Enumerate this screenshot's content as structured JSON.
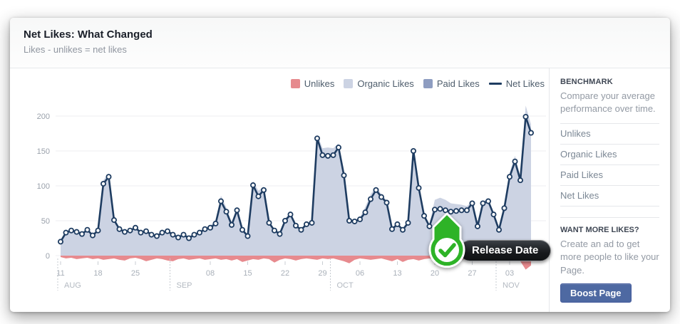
{
  "header": {
    "title": "Net Likes: What Changed",
    "subtitle": "Likes - unlikes = net likes"
  },
  "legend": [
    {
      "label": "Unlikes",
      "color": "#e68a8e",
      "type": "swatch"
    },
    {
      "label": "Organic Likes",
      "color": "#ccd3e3",
      "type": "swatch"
    },
    {
      "label": "Paid Likes",
      "color": "#8e9dc1",
      "type": "swatch"
    },
    {
      "label": "Net Likes",
      "color": "#1e3c61",
      "type": "line"
    }
  ],
  "annotation": {
    "tooltip": "Release Date",
    "icon": "check"
  },
  "chart_data": {
    "type": "area",
    "title": "Net Likes: What Changed",
    "x_start": "Aug 11",
    "x_end": "Nov 7",
    "ylim": [
      -30,
      220
    ],
    "yticks": [
      0,
      50,
      100,
      150,
      200
    ],
    "grid": true,
    "legend_position": "top-right",
    "colors": {
      "unlikes": "#e78a8e",
      "organic": "#ccd3e3",
      "paid": "#8e9dc1",
      "net": "#1e3c61"
    },
    "net_likes": [
      20,
      33,
      36,
      34,
      31,
      37,
      29,
      36,
      103,
      113,
      51,
      38,
      34,
      36,
      40,
      33,
      35,
      30,
      28,
      33,
      35,
      30,
      26,
      30,
      25,
      30,
      33,
      38,
      40,
      46,
      78,
      63,
      44,
      65,
      37,
      28,
      101,
      85,
      94,
      47,
      36,
      31,
      50,
      59,
      43,
      37,
      45,
      47,
      168,
      144,
      143,
      144,
      155,
      115,
      50,
      49,
      52,
      62,
      81,
      94,
      84,
      76,
      38,
      45,
      37,
      47,
      150,
      97,
      57,
      42,
      66,
      67,
      65,
      63,
      64,
      65,
      65,
      75,
      42,
      75,
      78,
      59,
      37,
      68,
      113,
      135,
      108,
      199,
      176
    ],
    "organic_likes": [
      22,
      35,
      38,
      36,
      33,
      39,
      31,
      38,
      108,
      118,
      54,
      40,
      36,
      38,
      42,
      35,
      37,
      32,
      30,
      35,
      37,
      32,
      28,
      32,
      27,
      32,
      35,
      40,
      43,
      50,
      86,
      69,
      47,
      68,
      39,
      30,
      107,
      93,
      99,
      50,
      38,
      33,
      53,
      62,
      45,
      39,
      47,
      50,
      174,
      154,
      155,
      154,
      161,
      123,
      53,
      51,
      55,
      70,
      88,
      99,
      88,
      79,
      40,
      47,
      39,
      50,
      156,
      105,
      60,
      45,
      80,
      83,
      80,
      75,
      74,
      73,
      71,
      78,
      44,
      78,
      81,
      62,
      39,
      71,
      119,
      143,
      114,
      215,
      188
    ],
    "unlikes": [
      -2,
      -4,
      -3,
      -5,
      -4,
      -3,
      -5,
      -4,
      -6,
      -5,
      -4,
      -6,
      -7,
      -4,
      -3,
      -5,
      -8,
      -6,
      -4,
      -5,
      -7,
      -8,
      -5,
      -4,
      -6,
      -5,
      -4,
      -6,
      -5,
      -4,
      -6,
      -5,
      -7,
      -5,
      -9,
      -7,
      -5,
      -6,
      -4,
      -5,
      -10,
      -6,
      -4,
      -5,
      -7,
      -5,
      -4,
      -5,
      -6,
      -4,
      -5,
      -4,
      -6,
      -8,
      -11,
      -6,
      -4,
      -5,
      -6,
      -5,
      -4,
      -6,
      -8,
      -5,
      -9,
      -6,
      -5,
      -7,
      -5,
      -4,
      -6,
      -5,
      -4,
      -6,
      -8,
      -6,
      -5,
      -4,
      -7,
      -5,
      -4,
      -6,
      -5,
      -7,
      -5,
      -6,
      -8,
      -20,
      -14
    ],
    "week_ticks": [
      {
        "i": 0,
        "label": "11"
      },
      {
        "i": 7,
        "label": "18"
      },
      {
        "i": 14,
        "label": "25"
      },
      {
        "i": 28,
        "label": "08"
      },
      {
        "i": 35,
        "label": "15"
      },
      {
        "i": 42,
        "label": "22"
      },
      {
        "i": 49,
        "label": "29"
      },
      {
        "i": 56,
        "label": "06"
      },
      {
        "i": 63,
        "label": "13"
      },
      {
        "i": 70,
        "label": "20"
      },
      {
        "i": 77,
        "label": "27"
      },
      {
        "i": 84,
        "label": "03"
      }
    ],
    "month_separators": [
      {
        "i": 0,
        "label": "AUG"
      },
      {
        "i": 21,
        "label": "SEP"
      },
      {
        "i": 51,
        "label": "OCT"
      },
      {
        "i": 82,
        "label": "NOV"
      }
    ]
  },
  "benchmark": {
    "heading": "BENCHMARK",
    "description": "Compare your average performance over time.",
    "options": [
      "Unlikes",
      "Organic Likes",
      "Paid Likes",
      "Net Likes"
    ]
  },
  "promo": {
    "heading": "WANT MORE LIKES?",
    "description": "Create an ad to get more people to like your Page.",
    "button": "Boost Page"
  }
}
